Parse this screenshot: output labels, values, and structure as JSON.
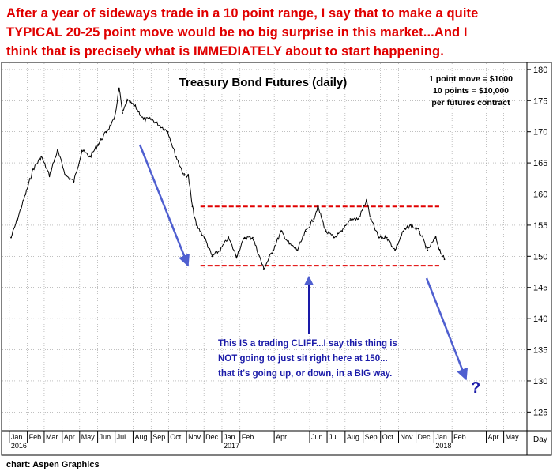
{
  "headline": {
    "line1": "After a year of sideways trade in a 10 point range, I say that to make a quite",
    "line2": "TYPICAL 20-25 point move would be no big surprise in this market...And I",
    "line3": "think that is precisely what is IMMEDIATELY about to start happening."
  },
  "credit": "chart: Aspen Graphics",
  "colors": {
    "headline": "#e00000",
    "annotation": "#1a1aa8",
    "arrow": "#4f5fd0",
    "range_lines": "#e00000",
    "price": "#000000"
  },
  "chart_data": {
    "type": "line",
    "title": "Treasury Bond Futures (daily)",
    "note": [
      "1 point move = $1000",
      "10 points = $10,000",
      "per futures contract"
    ],
    "y_axis_side": "right",
    "ylim": [
      122,
      181
    ],
    "yticks": [
      125,
      130,
      135,
      140,
      145,
      150,
      155,
      160,
      165,
      170,
      175,
      180
    ],
    "grid": true,
    "x_axis": {
      "start": "2015-12-20",
      "end": "2018-06-10",
      "unit_label": "Day",
      "month_ticks": [
        {
          "date": "2016-01-01",
          "label": "Jan"
        },
        {
          "date": "2016-02-01",
          "label": "Feb"
        },
        {
          "date": "2016-03-01",
          "label": "Mar"
        },
        {
          "date": "2016-04-01",
          "label": "Apr"
        },
        {
          "date": "2016-05-01",
          "label": "May"
        },
        {
          "date": "2016-06-01",
          "label": "Jun"
        },
        {
          "date": "2016-07-01",
          "label": "Jul"
        },
        {
          "date": "2016-08-01",
          "label": "Aug"
        },
        {
          "date": "2016-09-01",
          "label": "Sep"
        },
        {
          "date": "2016-10-01",
          "label": "Oct"
        },
        {
          "date": "2016-11-01",
          "label": "Nov"
        },
        {
          "date": "2016-12-01",
          "label": "Dec"
        },
        {
          "date": "2017-01-01",
          "label": "Jan"
        },
        {
          "date": "2017-02-01",
          "label": "Feb"
        },
        {
          "date": "2017-04-01",
          "label": "Apr"
        },
        {
          "date": "2017-06-01",
          "label": "Jun"
        },
        {
          "date": "2017-07-01",
          "label": "Jul"
        },
        {
          "date": "2017-08-01",
          "label": "Aug"
        },
        {
          "date": "2017-09-01",
          "label": "Sep"
        },
        {
          "date": "2017-10-01",
          "label": "Oct"
        },
        {
          "date": "2017-11-01",
          "label": "Nov"
        },
        {
          "date": "2017-12-01",
          "label": "Dec"
        },
        {
          "date": "2018-01-01",
          "label": "Jan"
        },
        {
          "date": "2018-02-01",
          "label": "Feb"
        },
        {
          "date": "2018-04-01",
          "label": "Apr"
        },
        {
          "date": "2018-05-01",
          "label": "May"
        }
      ],
      "year_labels": [
        {
          "date": "2016-01-01",
          "label": "2016"
        },
        {
          "date": "2017-01-01",
          "label": "2017"
        },
        {
          "date": "2018-01-01",
          "label": "2018"
        }
      ]
    },
    "series": [
      {
        "points": [
          [
            "2016-01-04",
            153
          ],
          [
            "2016-01-15",
            156
          ],
          [
            "2016-01-29",
            160
          ],
          [
            "2016-02-11",
            164
          ],
          [
            "2016-02-25",
            166
          ],
          [
            "2016-03-10",
            163
          ],
          [
            "2016-03-24",
            167
          ],
          [
            "2016-04-07",
            163
          ],
          [
            "2016-04-21",
            162
          ],
          [
            "2016-05-05",
            167
          ],
          [
            "2016-05-19",
            166
          ],
          [
            "2016-06-02",
            168
          ],
          [
            "2016-06-16",
            170
          ],
          [
            "2016-06-30",
            172
          ],
          [
            "2016-07-08",
            177
          ],
          [
            "2016-07-14",
            173
          ],
          [
            "2016-07-22",
            175
          ],
          [
            "2016-08-05",
            174
          ],
          [
            "2016-08-19",
            172
          ],
          [
            "2016-09-02",
            172
          ],
          [
            "2016-09-16",
            171
          ],
          [
            "2016-09-30",
            170
          ],
          [
            "2016-10-14",
            166
          ],
          [
            "2016-10-28",
            163
          ],
          [
            "2016-11-04",
            163
          ],
          [
            "2016-11-11",
            158
          ],
          [
            "2016-11-18",
            155
          ],
          [
            "2016-12-02",
            153
          ],
          [
            "2016-12-15",
            150
          ],
          [
            "2016-12-29",
            151
          ],
          [
            "2017-01-12",
            153
          ],
          [
            "2017-01-26",
            150
          ],
          [
            "2017-02-09",
            153
          ],
          [
            "2017-02-23",
            153
          ],
          [
            "2017-03-14",
            148
          ],
          [
            "2017-03-30",
            151
          ],
          [
            "2017-04-13",
            154
          ],
          [
            "2017-04-27",
            152
          ],
          [
            "2017-05-11",
            151
          ],
          [
            "2017-05-25",
            154
          ],
          [
            "2017-06-08",
            156
          ],
          [
            "2017-06-15",
            158
          ],
          [
            "2017-06-29",
            154
          ],
          [
            "2017-07-13",
            153
          ],
          [
            "2017-07-27",
            154
          ],
          [
            "2017-08-10",
            156
          ],
          [
            "2017-08-24",
            156
          ],
          [
            "2017-09-07",
            159
          ],
          [
            "2017-09-14",
            156
          ],
          [
            "2017-09-28",
            153
          ],
          [
            "2017-10-12",
            153
          ],
          [
            "2017-10-26",
            151
          ],
          [
            "2017-11-09",
            154
          ],
          [
            "2017-11-22",
            155
          ],
          [
            "2017-12-07",
            154
          ],
          [
            "2017-12-21",
            151
          ],
          [
            "2018-01-04",
            153
          ],
          [
            "2018-01-11",
            151
          ],
          [
            "2018-01-19",
            149.5
          ]
        ]
      }
    ],
    "range_lines": [
      {
        "value": 158,
        "from": "2016-11-25",
        "to": "2018-01-10"
      },
      {
        "value": 148.5,
        "from": "2016-11-25",
        "to": "2018-01-10"
      }
    ],
    "annotations": {
      "callout": [
        "This IS a trading CLIFF...I say this thing is",
        "NOT going to just sit right here at 150...",
        "that it's going up, or down, in a BIG way."
      ],
      "question_mark": "?"
    }
  }
}
